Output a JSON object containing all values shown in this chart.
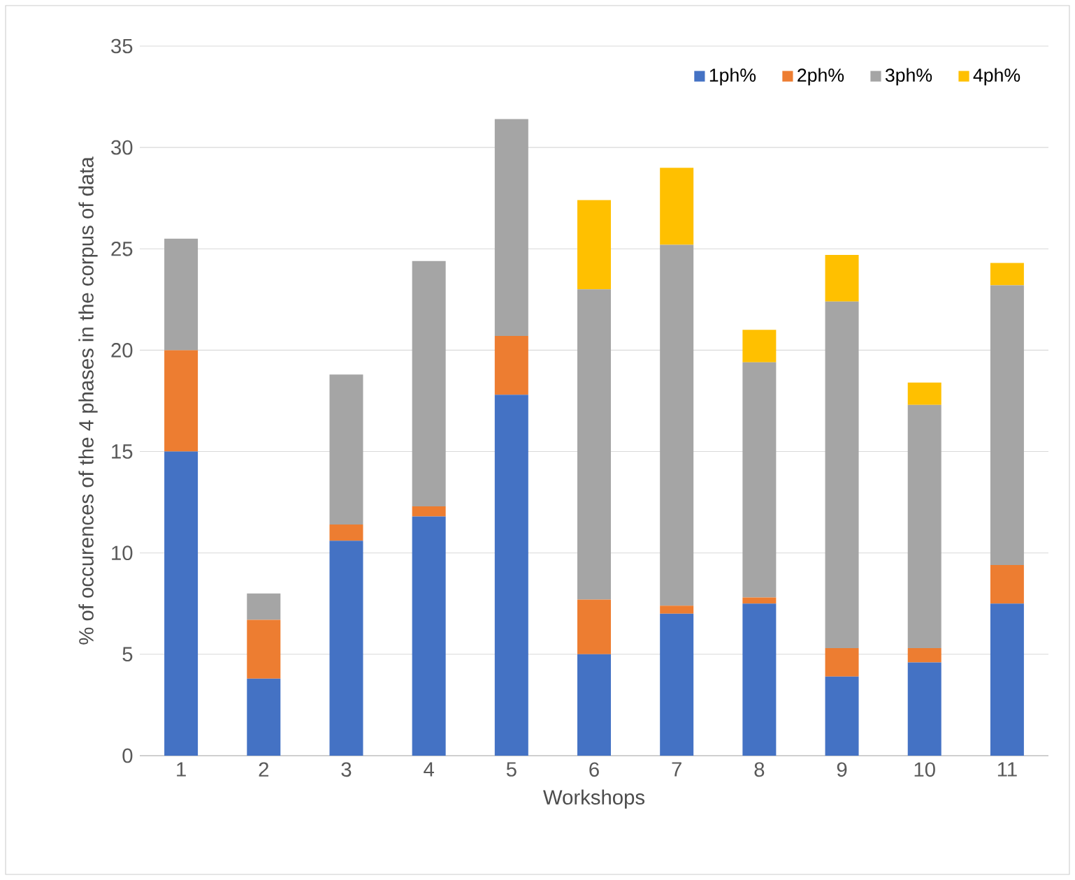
{
  "chart_data": {
    "type": "bar",
    "stacked": true,
    "xlabel": "Workshops",
    "ylabel": "% of occurences of the 4 phases in the corpus of data",
    "categories": [
      "1",
      "2",
      "3",
      "4",
      "5",
      "6",
      "7",
      "8",
      "9",
      "10",
      "11"
    ],
    "series": [
      {
        "name": "1ph%",
        "color": "#4472c4",
        "values": [
          15,
          3.8,
          10.6,
          11.8,
          17.8,
          5.0,
          7.0,
          7.5,
          3.9,
          4.6,
          7.5
        ]
      },
      {
        "name": "2ph%",
        "color": "#ed7d31",
        "values": [
          5,
          2.9,
          0.8,
          0.5,
          2.9,
          2.7,
          0.4,
          0.3,
          1.4,
          0.7,
          1.9
        ]
      },
      {
        "name": "3ph%",
        "color": "#a5a5a5",
        "values": [
          5.5,
          1.3,
          7.4,
          12.1,
          10.7,
          15.3,
          17.8,
          11.6,
          17.1,
          12.0,
          13.8
        ]
      },
      {
        "name": "4ph%",
        "color": "#ffc000",
        "values": [
          0,
          0,
          0,
          0,
          0,
          4.4,
          3.8,
          1.6,
          2.3,
          1.1,
          1.1
        ]
      }
    ],
    "ylim": [
      0,
      35
    ],
    "yticks": [
      0,
      5,
      10,
      15,
      20,
      25,
      30,
      35
    ],
    "grid": "y",
    "legend": "top right"
  }
}
